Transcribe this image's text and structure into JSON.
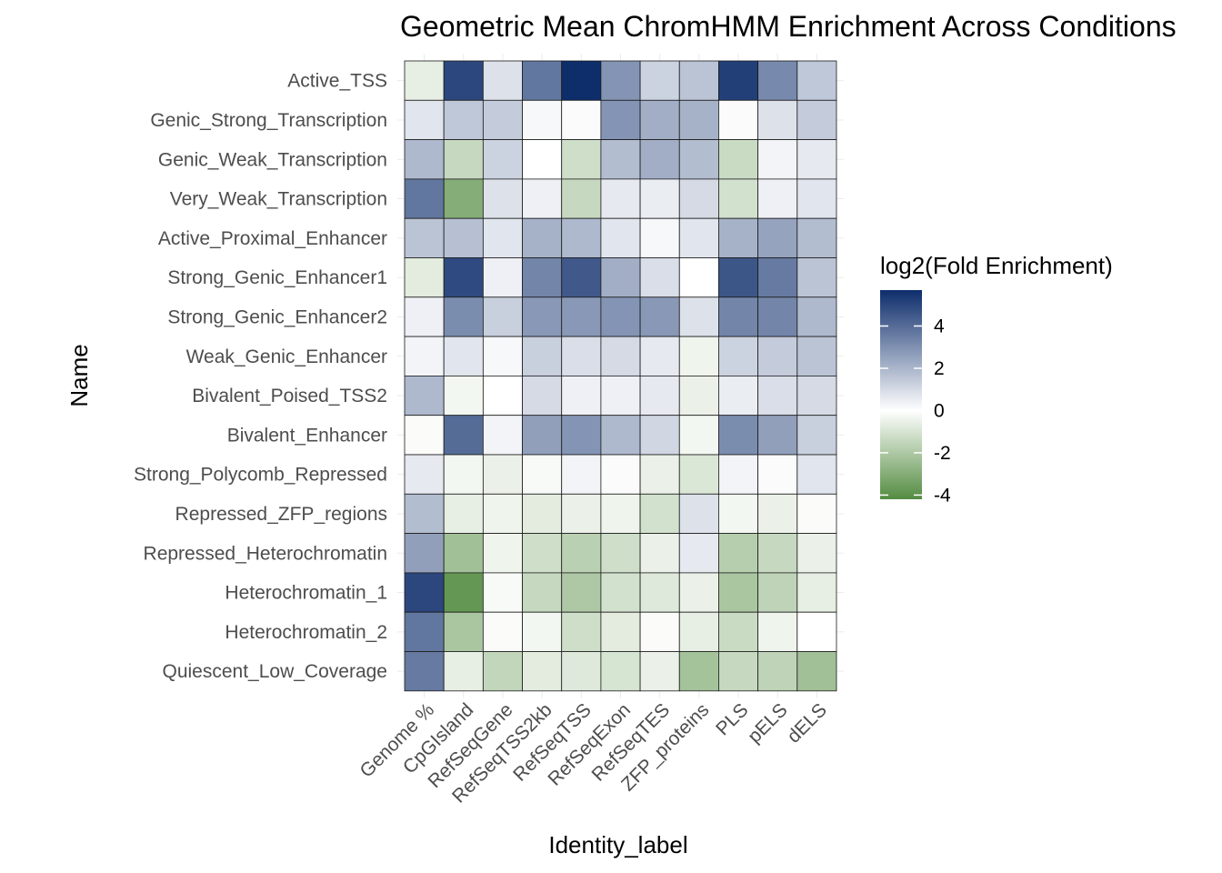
{
  "chart_data": {
    "type": "heatmap",
    "title": "Geometric Mean ChromHMM Enrichment Across Conditions",
    "xlabel": "Identity_label",
    "ylabel": "Name",
    "x": [
      "Genome %",
      "CpGIsland",
      "RefSeqGene",
      "RefSeqTSS2kb",
      "RefSeqTSS",
      "RefSeqExon",
      "RefSeqTES",
      "ZFP_proteins",
      "PLS",
      "pELS",
      "dELS"
    ],
    "y": [
      "Active_TSS",
      "Genic_Strong_Transcription",
      "Genic_Weak_Transcription",
      "Very_Weak_Transcription",
      "Active_Proximal_Enhancer",
      "Strong_Genic_Enhancer1",
      "Strong_Genic_Enhancer2",
      "Weak_Genic_Enhancer",
      "Bivalent_Poised_TSS2",
      "Bivalent_Enhancer",
      "Strong_Polycomb_Repressed",
      "Repressed_ZFP_regions",
      "Repressed_Heterochromatin",
      "Heterochromatin_1",
      "Heterochromatin_2",
      "Quiescent_Low_Coverage"
    ],
    "values": [
      [
        -0.6,
        5.0,
        0.8,
        3.7,
        5.7,
        2.9,
        1.2,
        1.6,
        5.2,
        3.2,
        1.5
      ],
      [
        0.7,
        1.5,
        1.4,
        0.2,
        0.1,
        2.9,
        2.2,
        2.1,
        0.1,
        0.8,
        1.4
      ],
      [
        1.9,
        -1.4,
        1.2,
        0.0,
        -1.2,
        1.8,
        2.2,
        1.8,
        -1.3,
        0.3,
        0.6
      ],
      [
        3.7,
        -3.0,
        0.8,
        0.4,
        -1.4,
        0.6,
        0.5,
        1.0,
        -1.1,
        0.4,
        0.7
      ],
      [
        1.6,
        1.7,
        0.7,
        2.1,
        1.9,
        0.7,
        0.2,
        0.7,
        2.1,
        2.5,
        1.8
      ],
      [
        -0.7,
        4.9,
        0.4,
        3.3,
        4.5,
        2.2,
        0.9,
        0.0,
        4.6,
        3.6,
        1.6
      ],
      [
        0.4,
        3.1,
        1.3,
        2.8,
        2.8,
        2.9,
        2.8,
        0.8,
        3.3,
        3.3,
        1.9
      ],
      [
        0.3,
        0.7,
        0.2,
        1.3,
        0.9,
        1.0,
        0.6,
        -0.4,
        1.2,
        1.4,
        1.6
      ],
      [
        1.9,
        -0.3,
        0.0,
        1.0,
        0.4,
        0.4,
        0.6,
        -0.5,
        0.5,
        0.9,
        1.0
      ],
      [
        -0.1,
        4.0,
        0.3,
        2.6,
        2.9,
        1.9,
        1.1,
        -0.3,
        3.1,
        2.6,
        1.3
      ],
      [
        0.6,
        -0.3,
        -0.5,
        -0.2,
        0.3,
        0.1,
        -0.5,
        -0.9,
        0.3,
        0.1,
        0.7
      ],
      [
        1.8,
        -0.6,
        -0.4,
        -0.7,
        -0.5,
        -0.4,
        -1.1,
        0.8,
        -0.3,
        -0.5,
        -0.1
      ],
      [
        2.6,
        -2.3,
        -0.4,
        -1.2,
        -1.7,
        -1.2,
        -0.5,
        0.6,
        -1.8,
        -1.4,
        -0.5
      ],
      [
        5.0,
        -3.8,
        -0.2,
        -1.4,
        -2.0,
        -1.1,
        -0.8,
        -0.5,
        -2.1,
        -1.6,
        -0.6
      ],
      [
        3.7,
        -2.1,
        -0.1,
        -0.3,
        -1.2,
        -0.7,
        -0.1,
        -0.6,
        -1.3,
        -0.4,
        0.0
      ],
      [
        3.6,
        -0.6,
        -1.5,
        -0.7,
        -0.8,
        -1.0,
        -0.5,
        -2.2,
        -1.4,
        -1.6,
        -2.3
      ]
    ],
    "colorbar": {
      "title": "log2(Fold Enrichment)",
      "ticks": [
        4,
        2,
        0,
        -2,
        -4
      ],
      "range": [
        -4.2,
        5.7
      ],
      "low_color": "#548c41",
      "mid_color": "#ffffff",
      "high_color": "#0d2d6b"
    }
  }
}
